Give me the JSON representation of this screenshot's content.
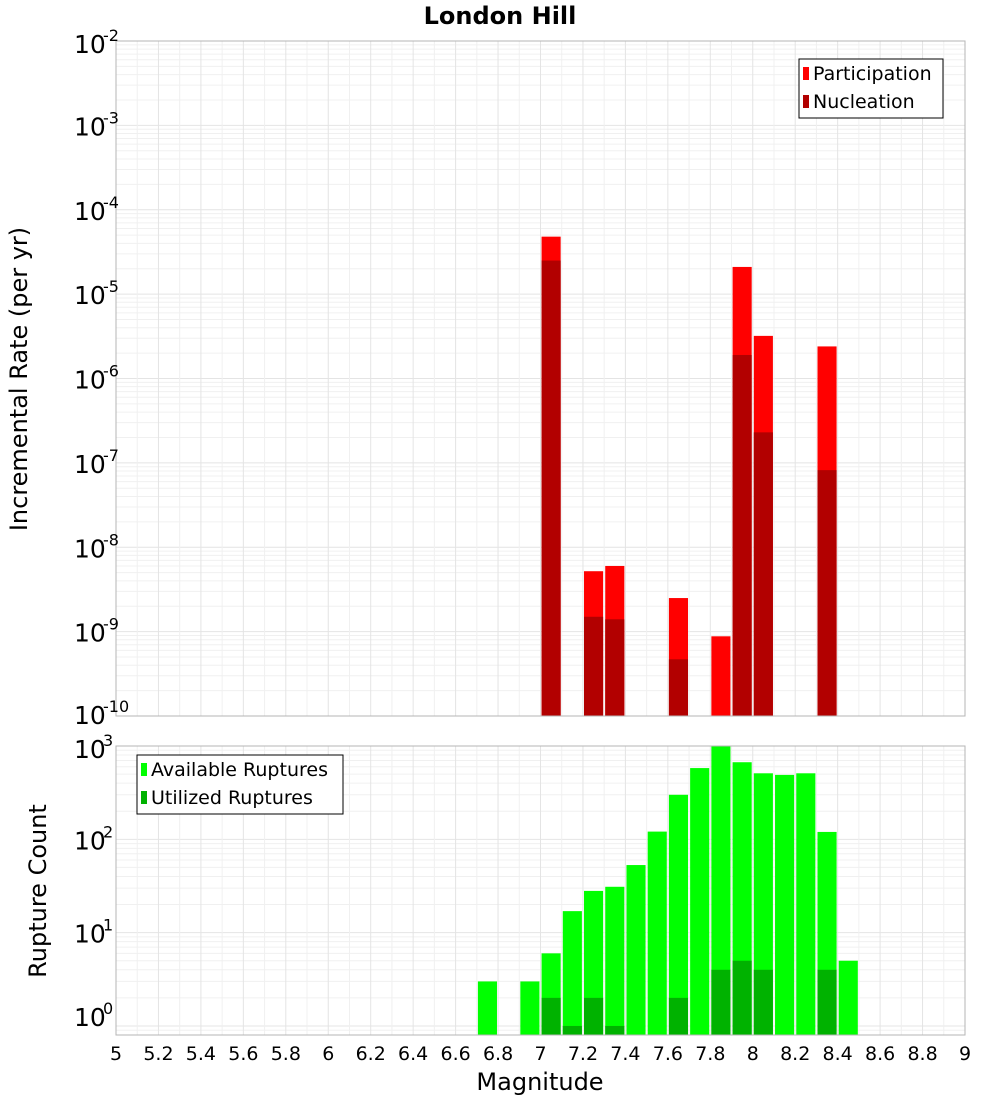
{
  "chart_data": [
    {
      "type": "bar",
      "title": "London Hill",
      "xlabel": "",
      "ylabel": "Incremental Rate (per yr)",
      "yscale": "log",
      "ylim": [
        1e-10,
        0.01
      ],
      "xlim": [
        5,
        9
      ],
      "grid": true,
      "legend_position": "top-right",
      "series": [
        {
          "name": "Participation",
          "color": "#ff0000",
          "points": [
            {
              "x": 7.05,
              "y": 4.8e-05
            },
            {
              "x": 7.25,
              "y": 5.2e-09
            },
            {
              "x": 7.35,
              "y": 6e-09
            },
            {
              "x": 7.65,
              "y": 2.5e-09
            },
            {
              "x": 7.85,
              "y": 8.8e-10
            },
            {
              "x": 7.95,
              "y": 2.1e-05
            },
            {
              "x": 8.05,
              "y": 3.2e-06
            },
            {
              "x": 8.35,
              "y": 2.4e-06
            }
          ]
        },
        {
          "name": "Nucleation",
          "color": "#b20000",
          "points": [
            {
              "x": 7.05,
              "y": 2.5e-05
            },
            {
              "x": 7.25,
              "y": 1.5e-09
            },
            {
              "x": 7.35,
              "y": 1.4e-09
            },
            {
              "x": 7.65,
              "y": 4.7e-10
            },
            {
              "x": 7.95,
              "y": 1.9e-06
            },
            {
              "x": 8.05,
              "y": 2.3e-07
            },
            {
              "x": 8.35,
              "y": 8.2e-08
            }
          ]
        }
      ]
    },
    {
      "type": "bar",
      "title": "",
      "xlabel": "Magnitude",
      "ylabel": "Rupture Count",
      "yscale": "log",
      "ylim": [
        0.8,
        1000
      ],
      "xlim": [
        5,
        9
      ],
      "grid": true,
      "legend_position": "top-left",
      "x_ticks": [
        "5",
        "5.2",
        "5.4",
        "5.6",
        "5.8",
        "6",
        "6.2",
        "6.4",
        "6.6",
        "6.8",
        "7",
        "7.2",
        "7.4",
        "7.6",
        "7.8",
        "8",
        "8.2",
        "8.4",
        "8.6",
        "8.8",
        "9"
      ],
      "series": [
        {
          "name": "Available Ruptures",
          "color": "#00ff00",
          "points": [
            {
              "x": 6.75,
              "y": 3
            },
            {
              "x": 6.95,
              "y": 3
            },
            {
              "x": 7.05,
              "y": 6
            },
            {
              "x": 7.15,
              "y": 17
            },
            {
              "x": 7.25,
              "y": 28
            },
            {
              "x": 7.35,
              "y": 31
            },
            {
              "x": 7.45,
              "y": 53
            },
            {
              "x": 7.55,
              "y": 121
            },
            {
              "x": 7.65,
              "y": 300
            },
            {
              "x": 7.75,
              "y": 580
            },
            {
              "x": 7.85,
              "y": 1000
            },
            {
              "x": 7.95,
              "y": 670
            },
            {
              "x": 8.05,
              "y": 510
            },
            {
              "x": 8.15,
              "y": 490
            },
            {
              "x": 8.25,
              "y": 510
            },
            {
              "x": 8.35,
              "y": 120
            },
            {
              "x": 8.45,
              "y": 5
            }
          ]
        },
        {
          "name": "Utilized Ruptures",
          "color": "#00b200",
          "points": [
            {
              "x": 7.05,
              "y": 2
            },
            {
              "x": 7.15,
              "y": 1
            },
            {
              "x": 7.25,
              "y": 2
            },
            {
              "x": 7.35,
              "y": 1
            },
            {
              "x": 7.65,
              "y": 2
            },
            {
              "x": 7.85,
              "y": 4
            },
            {
              "x": 7.95,
              "y": 5
            },
            {
              "x": 8.05,
              "y": 4
            },
            {
              "x": 8.35,
              "y": 4
            }
          ]
        }
      ]
    }
  ]
}
